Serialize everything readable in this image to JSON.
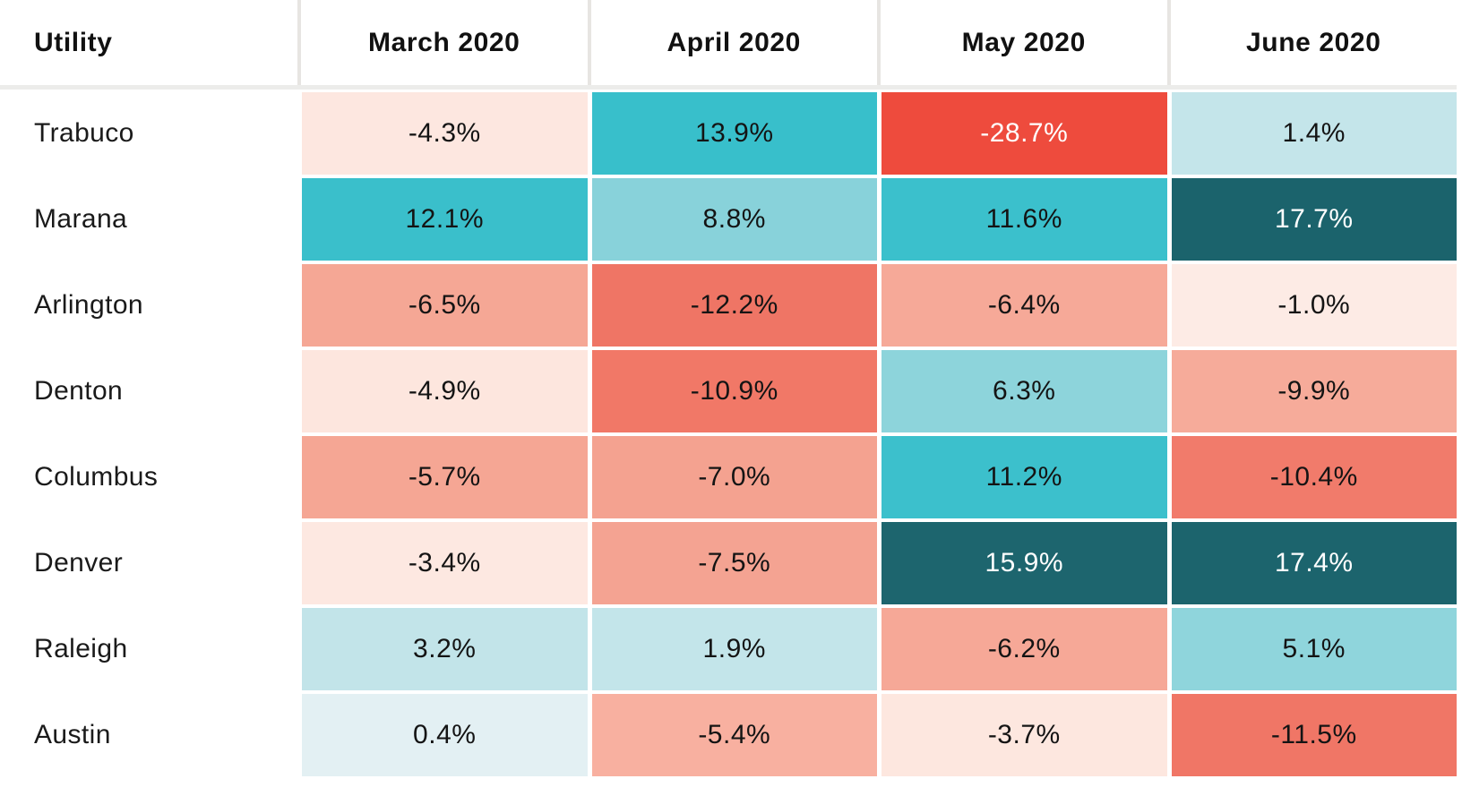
{
  "table": {
    "columns": [
      "Utility",
      "March 2020",
      "April 2020",
      "May 2020",
      "June 2020"
    ],
    "rows": [
      {
        "utility": "Trabuco",
        "cells": [
          {
            "value": "-4.3%",
            "bg": "#fde7e0",
            "fg": "#141414"
          },
          {
            "value": "13.9%",
            "bg": "#38bfcb",
            "fg": "#141414"
          },
          {
            "value": "-28.7%",
            "bg": "#ee4b3d",
            "fg": "#ffffff"
          },
          {
            "value": "1.4%",
            "bg": "#c4e5ea",
            "fg": "#141414"
          }
        ]
      },
      {
        "utility": "Marana",
        "cells": [
          {
            "value": "12.1%",
            "bg": "#3abfcb",
            "fg": "#141414"
          },
          {
            "value": "8.8%",
            "bg": "#88d2da",
            "fg": "#141414"
          },
          {
            "value": "11.6%",
            "bg": "#3bc0cc",
            "fg": "#141414"
          },
          {
            "value": "17.7%",
            "bg": "#1b636c",
            "fg": "#ffffff"
          }
        ]
      },
      {
        "utility": "Arlington",
        "cells": [
          {
            "value": "-6.5%",
            "bg": "#f5a795",
            "fg": "#141414"
          },
          {
            "value": "-12.2%",
            "bg": "#ef7565",
            "fg": "#141414"
          },
          {
            "value": "-6.4%",
            "bg": "#f6a998",
            "fg": "#141414"
          },
          {
            "value": "-1.0%",
            "bg": "#fdebe5",
            "fg": "#141414"
          }
        ]
      },
      {
        "utility": "Denton",
        "cells": [
          {
            "value": "-4.9%",
            "bg": "#fde6de",
            "fg": "#141414"
          },
          {
            "value": "-10.9%",
            "bg": "#f17867",
            "fg": "#141414"
          },
          {
            "value": "6.3%",
            "bg": "#8dd4db",
            "fg": "#141414"
          },
          {
            "value": "-9.9%",
            "bg": "#f6ab9a",
            "fg": "#141414"
          }
        ]
      },
      {
        "utility": "Columbus",
        "cells": [
          {
            "value": "-5.7%",
            "bg": "#f5a694",
            "fg": "#141414"
          },
          {
            "value": "-7.0%",
            "bg": "#f4a290",
            "fg": "#141414"
          },
          {
            "value": "11.2%",
            "bg": "#3cc0cc",
            "fg": "#141414"
          },
          {
            "value": "-10.4%",
            "bg": "#f17b6b",
            "fg": "#141414"
          }
        ]
      },
      {
        "utility": "Denver",
        "cells": [
          {
            "value": "-3.4%",
            "bg": "#fde8e1",
            "fg": "#141414"
          },
          {
            "value": "-7.5%",
            "bg": "#f4a392",
            "fg": "#141414"
          },
          {
            "value": "15.9%",
            "bg": "#1d656e",
            "fg": "#ffffff"
          },
          {
            "value": "17.4%",
            "bg": "#1c646d",
            "fg": "#ffffff"
          }
        ]
      },
      {
        "utility": "Raleigh",
        "cells": [
          {
            "value": "3.2%",
            "bg": "#c2e4e9",
            "fg": "#141414"
          },
          {
            "value": "1.9%",
            "bg": "#c3e5ea",
            "fg": "#141414"
          },
          {
            "value": "-6.2%",
            "bg": "#f6a897",
            "fg": "#141414"
          },
          {
            "value": "5.1%",
            "bg": "#8fd5dc",
            "fg": "#141414"
          }
        ]
      },
      {
        "utility": "Austin",
        "cells": [
          {
            "value": "0.4%",
            "bg": "#e3f0f3",
            "fg": "#141414"
          },
          {
            "value": "-5.4%",
            "bg": "#f8b0a0",
            "fg": "#141414"
          },
          {
            "value": "-3.7%",
            "bg": "#fde7df",
            "fg": "#141414"
          },
          {
            "value": "-11.5%",
            "bg": "#f07666",
            "fg": "#141414"
          }
        ]
      }
    ]
  },
  "colors": {
    "background": "#ffffff",
    "divider": "#e7e5e2",
    "header_rule": "#ececea",
    "text_dark": "#141414",
    "text_light": "#ffffff",
    "teal_strong": "#1b636c",
    "teal_mid": "#3bc0cc",
    "teal_light": "#8dd4db",
    "blue_pale": "#c3e5ea",
    "red_strong": "#ee4b3d",
    "red_mid": "#f17b6b",
    "salmon": "#f6a998",
    "pink_pale": "#fde7e0"
  },
  "chart_data": {
    "type": "heatmap",
    "title": "",
    "xlabel": "",
    "ylabel": "Utility",
    "x_labels": [
      "March 2020",
      "April 2020",
      "May 2020",
      "June 2020"
    ],
    "y_labels": [
      "Trabuco",
      "Marana",
      "Arlington",
      "Denton",
      "Columbus",
      "Denver",
      "Raleigh",
      "Austin"
    ],
    "values": [
      [
        -4.3,
        13.9,
        -28.7,
        1.4
      ],
      [
        12.1,
        8.8,
        11.6,
        17.7
      ],
      [
        -6.5,
        -12.2,
        -6.4,
        -1.0
      ],
      [
        -4.9,
        -10.9,
        6.3,
        -9.9
      ],
      [
        -5.7,
        -7.0,
        11.2,
        -10.4
      ],
      [
        -3.4,
        -7.5,
        15.9,
        17.4
      ],
      [
        3.2,
        1.9,
        -6.2,
        5.1
      ],
      [
        0.4,
        -5.4,
        -3.7,
        -11.5
      ]
    ],
    "value_format": "percent",
    "value_range": [
      -28.7,
      17.7
    ],
    "colorscale": "diverging red (negative) to teal (positive), white near zero",
    "grid": false,
    "legend": "none"
  }
}
